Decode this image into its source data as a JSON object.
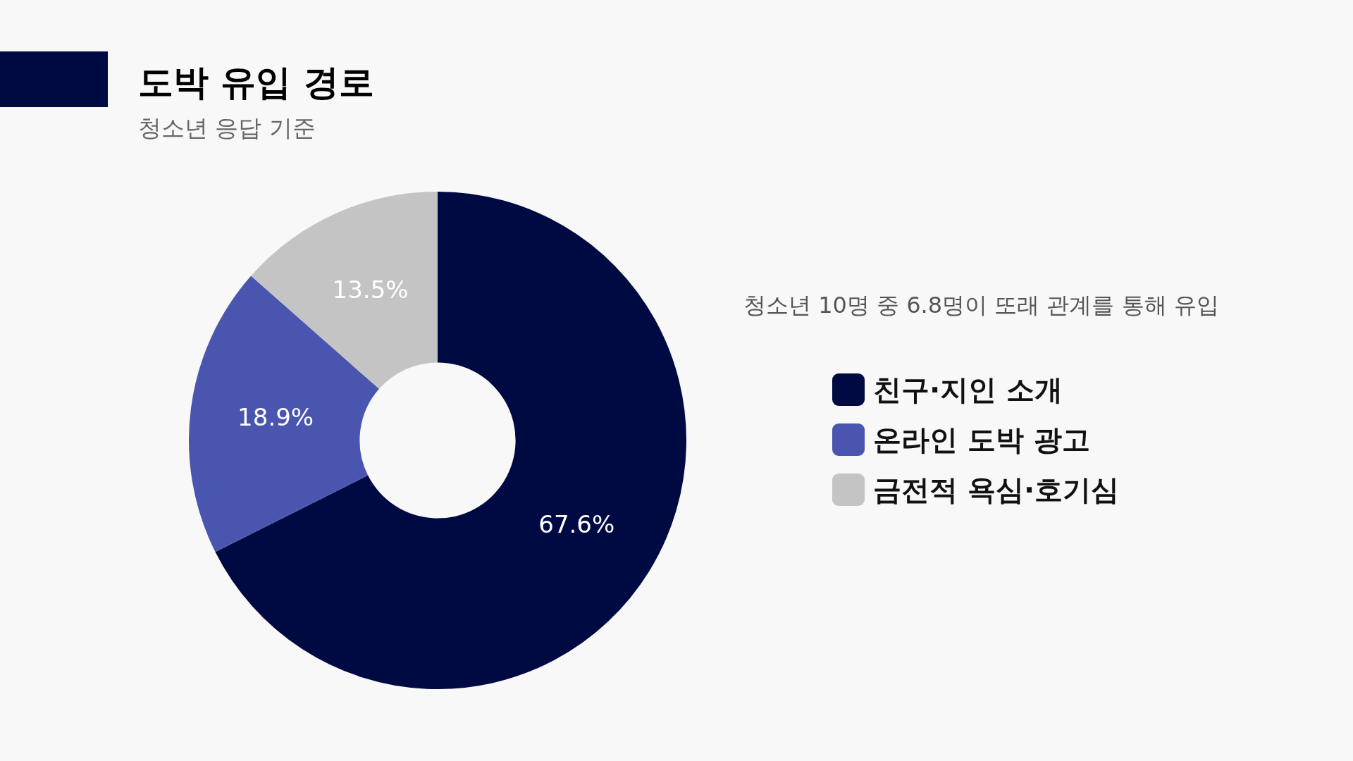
{
  "chart_data": {
    "type": "donut",
    "title": "도박 유입 경로",
    "subtitle": "청소년 응답 기준",
    "categories": [
      "친구·지인 소개",
      "온라인 도박 광고",
      "금전적 욕심·호기심"
    ],
    "values": [
      67.6,
      18.9,
      13.5
    ],
    "colors": [
      "#000a42",
      "#4a55b0",
      "#c4c4c4"
    ],
    "value_labels": [
      "67.6%",
      "18.9%",
      "13.5%"
    ],
    "annotations": [
      "청소년 10명 중 6.8명이 또래 관계를 통해 유입"
    ],
    "legend": "right"
  }
}
